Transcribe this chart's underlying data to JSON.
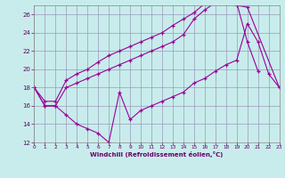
{
  "xlabel": "Windchill (Refroidissement éolien,°C)",
  "background_color": "#c8ecec",
  "grid_color": "#9999bb",
  "line_color": "#990099",
  "xlim": [
    0,
    23
  ],
  "ylim": [
    12,
    27
  ],
  "xticks": [
    0,
    1,
    2,
    3,
    4,
    5,
    6,
    7,
    8,
    9,
    10,
    11,
    12,
    13,
    14,
    15,
    16,
    17,
    18,
    19,
    20,
    21,
    22,
    23
  ],
  "yticks": [
    12,
    14,
    16,
    18,
    20,
    22,
    24,
    26
  ],
  "line1_x": [
    0,
    1,
    2,
    3,
    4,
    5,
    6,
    7,
    8,
    9,
    10,
    11,
    12,
    13,
    14,
    15,
    16,
    17,
    18,
    19,
    20,
    21,
    22,
    23
  ],
  "line1_y": [
    18,
    16,
    16,
    15,
    14,
    13.5,
    13,
    12,
    17.5,
    14.5,
    15.5,
    16,
    16.5,
    17,
    17.5,
    18.5,
    19,
    19.8,
    20.5,
    21,
    25,
    23,
    19.5,
    18
  ],
  "line2_x": [
    0,
    1,
    2,
    3,
    4,
    5,
    6,
    7,
    8,
    9,
    10,
    11,
    12,
    13,
    14,
    15,
    16,
    17,
    18,
    19,
    20,
    23
  ],
  "line2_y": [
    18,
    16,
    16,
    18,
    18.5,
    19,
    19.5,
    20,
    20.5,
    21,
    21.5,
    22,
    22.5,
    23,
    23.8,
    25.5,
    26.5,
    27.3,
    27.2,
    27,
    26.8,
    18
  ],
  "line3_x": [
    0,
    1,
    2,
    3,
    4,
    5,
    6,
    7,
    8,
    9,
    10,
    11,
    12,
    13,
    14,
    15,
    16,
    17,
    18,
    19,
    20,
    21
  ],
  "line3_y": [
    18,
    16.5,
    16.5,
    18.8,
    19.5,
    20,
    20.8,
    21.5,
    22,
    22.5,
    23,
    23.5,
    24,
    24.8,
    25.5,
    26.2,
    27.2,
    27.5,
    27.4,
    27.3,
    23,
    19.8
  ]
}
